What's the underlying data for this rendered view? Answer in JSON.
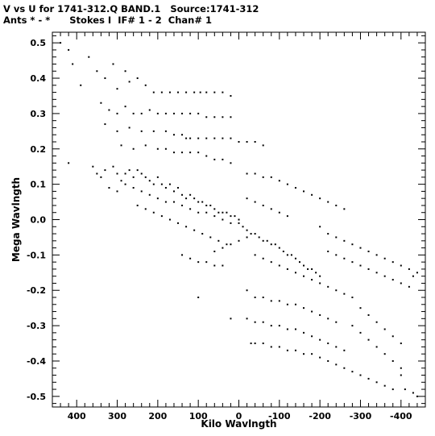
{
  "titles": {
    "line1": "V vs U for 1741-312.Q BAND.1   Source:1741-312",
    "line2": "Ants * - *      Stokes I  IF# 1 - 2  Chan# 1"
  },
  "chart_data": {
    "type": "scatter",
    "title": "V vs U for 1741-312.Q BAND.1   Source:1741-312",
    "subtitle": "Ants * - *      Stokes I  IF# 1 - 2  Chan# 1",
    "xlabel": "Kilo Wavlngth",
    "ylabel": "Mega Wavlngth",
    "xlim": [
      460,
      -460
    ],
    "ylim": [
      -0.53,
      0.53
    ],
    "x_ticks": [
      400,
      300,
      200,
      100,
      0,
      -100,
      -200,
      -300,
      -400
    ],
    "x_tick_labels": [
      "400",
      "300",
      "200",
      "100",
      "0",
      "-100",
      "-200",
      "-300",
      "-400"
    ],
    "y_ticks": [
      0.5,
      0.4,
      0.3,
      0.2,
      0.1,
      0.0,
      -0.1,
      -0.2,
      -0.3,
      -0.4,
      -0.5
    ],
    "y_tick_labels": [
      "0.5",
      "0.4",
      "0.3",
      "0.2",
      "0.1",
      "0.0",
      "-0.1",
      "-0.2",
      "-0.3",
      "-0.4",
      "-0.5"
    ],
    "grid": false,
    "marker_color": "#000000",
    "points": [
      [
        440,
        0.5
      ],
      [
        420,
        0.48
      ],
      [
        410,
        0.44
      ],
      [
        390,
        0.38
      ],
      [
        370,
        0.46
      ],
      [
        350,
        0.42
      ],
      [
        330,
        0.4
      ],
      [
        310,
        0.44
      ],
      [
        300,
        0.37
      ],
      [
        280,
        0.42
      ],
      [
        270,
        0.39
      ],
      [
        250,
        0.4
      ],
      [
        230,
        0.38
      ],
      [
        210,
        0.36
      ],
      [
        190,
        0.36
      ],
      [
        170,
        0.36
      ],
      [
        150,
        0.36
      ],
      [
        130,
        0.36
      ],
      [
        110,
        0.36
      ],
      [
        95,
        0.36
      ],
      [
        80,
        0.36
      ],
      [
        60,
        0.36
      ],
      [
        40,
        0.36
      ],
      [
        20,
        0.35
      ],
      [
        340,
        0.33
      ],
      [
        320,
        0.31
      ],
      [
        300,
        0.3
      ],
      [
        280,
        0.32
      ],
      [
        260,
        0.3
      ],
      [
        240,
        0.3
      ],
      [
        220,
        0.31
      ],
      [
        200,
        0.3
      ],
      [
        180,
        0.3
      ],
      [
        160,
        0.3
      ],
      [
        140,
        0.3
      ],
      [
        120,
        0.3
      ],
      [
        100,
        0.3
      ],
      [
        80,
        0.29
      ],
      [
        60,
        0.29
      ],
      [
        40,
        0.29
      ],
      [
        20,
        0.29
      ],
      [
        330,
        0.27
      ],
      [
        300,
        0.25
      ],
      [
        270,
        0.26
      ],
      [
        240,
        0.25
      ],
      [
        210,
        0.25
      ],
      [
        180,
        0.25
      ],
      [
        160,
        0.24
      ],
      [
        140,
        0.24
      ],
      [
        130,
        0.23
      ],
      [
        120,
        0.23
      ],
      [
        100,
        0.23
      ],
      [
        80,
        0.23
      ],
      [
        60,
        0.23
      ],
      [
        40,
        0.23
      ],
      [
        20,
        0.23
      ],
      [
        0,
        0.22
      ],
      [
        -20,
        0.22
      ],
      [
        -40,
        0.22
      ],
      [
        -60,
        0.21
      ],
      [
        290,
        0.21
      ],
      [
        260,
        0.2
      ],
      [
        230,
        0.21
      ],
      [
        200,
        0.2
      ],
      [
        180,
        0.2
      ],
      [
        160,
        0.19
      ],
      [
        140,
        0.19
      ],
      [
        120,
        0.19
      ],
      [
        100,
        0.19
      ],
      [
        80,
        0.18
      ],
      [
        60,
        0.17
      ],
      [
        40,
        0.17
      ],
      [
        20,
        0.16
      ],
      [
        420,
        0.16
      ],
      [
        360,
        0.15
      ],
      [
        350,
        0.13
      ],
      [
        340,
        0.12
      ],
      [
        330,
        0.14
      ],
      [
        310,
        0.15
      ],
      [
        300,
        0.13
      ],
      [
        290,
        0.11
      ],
      [
        280,
        0.13
      ],
      [
        270,
        0.14
      ],
      [
        260,
        0.12
      ],
      [
        250,
        0.14
      ],
      [
        240,
        0.13
      ],
      [
        230,
        0.12
      ],
      [
        220,
        0.11
      ],
      [
        210,
        0.1
      ],
      [
        200,
        0.12
      ],
      [
        190,
        0.1
      ],
      [
        180,
        0.09
      ],
      [
        170,
        0.1
      ],
      [
        160,
        0.08
      ],
      [
        150,
        0.09
      ],
      [
        140,
        0.07
      ],
      [
        130,
        0.06
      ],
      [
        120,
        0.07
      ],
      [
        110,
        0.06
      ],
      [
        100,
        0.05
      ],
      [
        90,
        0.05
      ],
      [
        80,
        0.04
      ],
      [
        70,
        0.04
      ],
      [
        60,
        0.03
      ],
      [
        50,
        0.02
      ],
      [
        40,
        0.02
      ],
      [
        30,
        0.02
      ],
      [
        20,
        0.01
      ],
      [
        10,
        0.01
      ],
      [
        0,
        0.0
      ],
      [
        320,
        0.09
      ],
      [
        300,
        0.08
      ],
      [
        280,
        0.1
      ],
      [
        260,
        0.09
      ],
      [
        240,
        0.08
      ],
      [
        220,
        0.07
      ],
      [
        200,
        0.06
      ],
      [
        180,
        0.05
      ],
      [
        160,
        0.05
      ],
      [
        140,
        0.04
      ],
      [
        120,
        0.03
      ],
      [
        100,
        0.02
      ],
      [
        80,
        0.02
      ],
      [
        60,
        0.01
      ],
      [
        40,
        0.0
      ],
      [
        20,
        -0.01
      ],
      [
        250,
        0.04
      ],
      [
        230,
        0.03
      ],
      [
        210,
        0.02
      ],
      [
        190,
        0.01
      ],
      [
        170,
        0.0
      ],
      [
        150,
        -0.01
      ],
      [
        130,
        -0.02
      ],
      [
        110,
        -0.03
      ],
      [
        90,
        -0.04
      ],
      [
        70,
        -0.05
      ],
      [
        50,
        -0.06
      ],
      [
        30,
        -0.07
      ],
      [
        -20,
        0.13
      ],
      [
        -40,
        0.13
      ],
      [
        -60,
        0.12
      ],
      [
        -80,
        0.12
      ],
      [
        -100,
        0.11
      ],
      [
        -120,
        0.1
      ],
      [
        -140,
        0.09
      ],
      [
        -160,
        0.08
      ],
      [
        -180,
        0.07
      ],
      [
        -200,
        0.06
      ],
      [
        -220,
        0.05
      ],
      [
        -240,
        0.04
      ],
      [
        -260,
        0.03
      ],
      [
        -20,
        0.06
      ],
      [
        -40,
        0.05
      ],
      [
        -60,
        0.04
      ],
      [
        -80,
        0.03
      ],
      [
        -100,
        0.02
      ],
      [
        -120,
        0.01
      ],
      [
        0,
        -0.01
      ],
      [
        -10,
        -0.02
      ],
      [
        -20,
        -0.03
      ],
      [
        -30,
        -0.04
      ],
      [
        -40,
        -0.04
      ],
      [
        -50,
        -0.05
      ],
      [
        -60,
        -0.06
      ],
      [
        -70,
        -0.06
      ],
      [
        -80,
        -0.07
      ],
      [
        -90,
        -0.07
      ],
      [
        -100,
        -0.08
      ],
      [
        -110,
        -0.09
      ],
      [
        -120,
        -0.1
      ],
      [
        -130,
        -0.1
      ],
      [
        -140,
        -0.11
      ],
      [
        -150,
        -0.12
      ],
      [
        -160,
        -0.13
      ],
      [
        -170,
        -0.14
      ],
      [
        -180,
        -0.14
      ],
      [
        -190,
        -0.15
      ],
      [
        -200,
        -0.16
      ],
      [
        -40,
        -0.1
      ],
      [
        -60,
        -0.11
      ],
      [
        -80,
        -0.12
      ],
      [
        -100,
        -0.13
      ],
      [
        -120,
        -0.14
      ],
      [
        -140,
        -0.15
      ],
      [
        -160,
        -0.16
      ],
      [
        -180,
        -0.17
      ],
      [
        -200,
        -0.18
      ],
      [
        -220,
        -0.19
      ],
      [
        -240,
        -0.2
      ],
      [
        -260,
        -0.21
      ],
      [
        -280,
        -0.22
      ],
      [
        -200,
        -0.02
      ],
      [
        -220,
        -0.04
      ],
      [
        -240,
        -0.05
      ],
      [
        -260,
        -0.06
      ],
      [
        -280,
        -0.07
      ],
      [
        -300,
        -0.08
      ],
      [
        -320,
        -0.09
      ],
      [
        -340,
        -0.1
      ],
      [
        -360,
        -0.11
      ],
      [
        -380,
        -0.12
      ],
      [
        -400,
        -0.13
      ],
      [
        -420,
        -0.14
      ],
      [
        -440,
        -0.15
      ],
      [
        -220,
        -0.09
      ],
      [
        -240,
        -0.1
      ],
      [
        -260,
        -0.11
      ],
      [
        -280,
        -0.12
      ],
      [
        -300,
        -0.13
      ],
      [
        -320,
        -0.14
      ],
      [
        -340,
        -0.15
      ],
      [
        -360,
        -0.16
      ],
      [
        -380,
        -0.17
      ],
      [
        -400,
        -0.18
      ],
      [
        -420,
        -0.19
      ],
      [
        -430,
        -0.16
      ],
      [
        -20,
        -0.2
      ],
      [
        -40,
        -0.22
      ],
      [
        -60,
        -0.22
      ],
      [
        -80,
        -0.23
      ],
      [
        -100,
        -0.23
      ],
      [
        -120,
        -0.24
      ],
      [
        -140,
        -0.24
      ],
      [
        -160,
        -0.25
      ],
      [
        -180,
        -0.26
      ],
      [
        -200,
        -0.27
      ],
      [
        -220,
        -0.28
      ],
      [
        -240,
        -0.29
      ],
      [
        -20,
        -0.28
      ],
      [
        -40,
        -0.29
      ],
      [
        -60,
        -0.29
      ],
      [
        -80,
        -0.3
      ],
      [
        -100,
        -0.3
      ],
      [
        -120,
        -0.31
      ],
      [
        -140,
        -0.31
      ],
      [
        -160,
        -0.32
      ],
      [
        -180,
        -0.33
      ],
      [
        -200,
        -0.34
      ],
      [
        -220,
        -0.35
      ],
      [
        -240,
        -0.36
      ],
      [
        -260,
        -0.37
      ],
      [
        -40,
        -0.35
      ],
      [
        -60,
        -0.35
      ],
      [
        -80,
        -0.36
      ],
      [
        -100,
        -0.36
      ],
      [
        -120,
        -0.37
      ],
      [
        -140,
        -0.37
      ],
      [
        -160,
        -0.38
      ],
      [
        -180,
        -0.38
      ],
      [
        -200,
        -0.39
      ],
      [
        -220,
        -0.4
      ],
      [
        -240,
        -0.41
      ],
      [
        -260,
        -0.42
      ],
      [
        -280,
        -0.43
      ],
      [
        -300,
        -0.44
      ],
      [
        -320,
        -0.45
      ],
      [
        -340,
        -0.46
      ],
      [
        -360,
        -0.47
      ],
      [
        -380,
        -0.48
      ],
      [
        -400,
        -0.44
      ],
      [
        -410,
        -0.48
      ],
      [
        -430,
        -0.49
      ],
      [
        -440,
        -0.5
      ],
      [
        -280,
        -0.3
      ],
      [
        -300,
        -0.32
      ],
      [
        -320,
        -0.34
      ],
      [
        -340,
        -0.36
      ],
      [
        -360,
        -0.38
      ],
      [
        -380,
        -0.4
      ],
      [
        -400,
        -0.42
      ],
      [
        -300,
        -0.25
      ],
      [
        -320,
        -0.27
      ],
      [
        -340,
        -0.29
      ],
      [
        -360,
        -0.31
      ],
      [
        -380,
        -0.33
      ],
      [
        -400,
        -0.35
      ],
      [
        60,
        -0.09
      ],
      [
        40,
        -0.08
      ],
      [
        20,
        -0.07
      ],
      [
        0,
        -0.06
      ],
      [
        -20,
        -0.05
      ],
      [
        140,
        -0.1
      ],
      [
        120,
        -0.11
      ],
      [
        100,
        -0.12
      ],
      [
        80,
        -0.12
      ],
      [
        60,
        -0.13
      ],
      [
        40,
        -0.13
      ],
      [
        100,
        -0.22
      ],
      [
        20,
        -0.28
      ],
      [
        -30,
        -0.35
      ]
    ]
  }
}
